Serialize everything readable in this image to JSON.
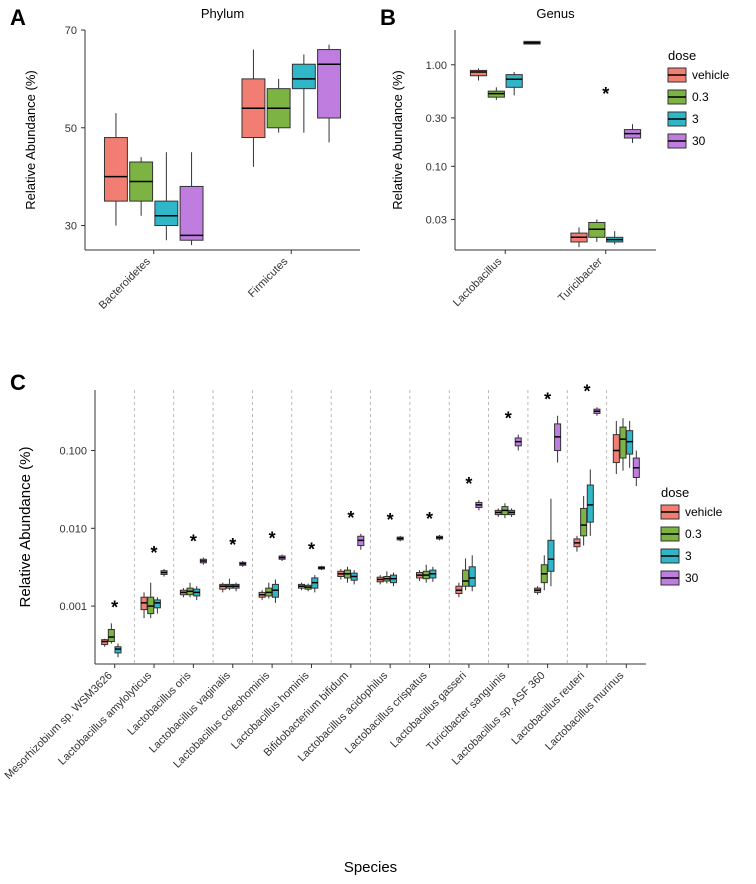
{
  "colors": {
    "vehicle": "#f27e73",
    "d03": "#7cb342",
    "d3": "#2fb7c9",
    "d30": "#c07de0",
    "bg": "#ffffff",
    "border": "#333333"
  },
  "doses": [
    "vehicle",
    "0.3",
    "3",
    "30"
  ],
  "panelA": {
    "title": "Phylum",
    "ylabel": "Relative Abundance (%)",
    "ylim": [
      25,
      70
    ],
    "yticks": [
      30,
      50,
      70
    ],
    "categories": [
      "Bacteroidetes",
      "Firmicutes"
    ],
    "data": {
      "Bacteroidetes": {
        "vehicle": {
          "low": 30,
          "q1": 35,
          "med": 40,
          "q3": 48,
          "high": 53
        },
        "0.3": {
          "low": 32,
          "q1": 35,
          "med": 39,
          "q3": 43,
          "high": 44
        },
        "3": {
          "low": 27,
          "q1": 30,
          "med": 32,
          "q3": 35,
          "high": 45
        },
        "30": {
          "low": 26,
          "q1": 27,
          "med": 28,
          "q3": 38,
          "high": 45
        }
      },
      "Firmicutes": {
        "vehicle": {
          "low": 42,
          "q1": 48,
          "med": 54,
          "q3": 60,
          "high": 66
        },
        "0.3": {
          "low": 49,
          "q1": 50,
          "med": 54,
          "q3": 58,
          "high": 60
        },
        "3": {
          "low": 49,
          "q1": 58,
          "med": 60,
          "q3": 63,
          "high": 65
        },
        "30": {
          "low": 47,
          "q1": 52,
          "med": 63,
          "q3": 66,
          "high": 67
        }
      }
    }
  },
  "panelB": {
    "title": "Genus",
    "ylabel": "Relative Abundance (%)",
    "yticks": [
      0.03,
      0.1,
      0.3,
      1.0
    ],
    "ylim": [
      0.015,
      2.2
    ],
    "categories": [
      "Lactobacillus",
      "Turicibacter"
    ],
    "stars": {
      "Turicibacter": true
    },
    "data": {
      "Lactobacillus": {
        "vehicle": {
          "low": 0.7,
          "q1": 0.78,
          "med": 0.85,
          "q3": 0.88,
          "high": 0.92
        },
        "0.3": {
          "low": 0.45,
          "q1": 0.48,
          "med": 0.52,
          "q3": 0.55,
          "high": 0.6
        },
        "3": {
          "low": 0.5,
          "q1": 0.6,
          "med": 0.72,
          "q3": 0.8,
          "high": 0.85
        },
        "30": {
          "low": 1.6,
          "q1": 1.6,
          "med": 1.65,
          "q3": 1.7,
          "high": 1.7
        }
      },
      "Turicibacter": {
        "vehicle": {
          "low": 0.016,
          "q1": 0.018,
          "med": 0.02,
          "q3": 0.022,
          "high": 0.025
        },
        "0.3": {
          "low": 0.018,
          "q1": 0.02,
          "med": 0.024,
          "q3": 0.028,
          "high": 0.03
        },
        "3": {
          "low": 0.017,
          "q1": 0.018,
          "med": 0.019,
          "q3": 0.02,
          "high": 0.023
        },
        "30": {
          "low": 0.17,
          "q1": 0.19,
          "med": 0.21,
          "q3": 0.23,
          "high": 0.26
        }
      }
    }
  },
  "panelC": {
    "ylabel": "Relative Abundance (%)",
    "xlabel": "Species",
    "yticks": [
      0.001,
      0.01,
      0.1
    ],
    "ylim": [
      0.00018,
      0.6
    ],
    "species": [
      {
        "name": "Mesorhizobium sp. WSM3626",
        "star": true,
        "vehicle": {
          "low": 0.0003,
          "q1": 0.00032,
          "med": 0.00035,
          "q3": 0.00037,
          "high": 0.00038
        },
        "0.3": {
          "low": 0.00033,
          "q1": 0.00035,
          "med": 0.0004,
          "q3": 0.0005,
          "high": 0.0006
        },
        "3": {
          "low": 0.00022,
          "q1": 0.00025,
          "med": 0.00028,
          "q3": 0.0003,
          "high": 0.00033
        }
      },
      {
        "name": "Lactobacillus amylolyticus",
        "star": true,
        "vehicle": {
          "low": 0.0007,
          "q1": 0.0009,
          "med": 0.0011,
          "q3": 0.0013,
          "high": 0.0015
        },
        "0.3": {
          "low": 0.0007,
          "q1": 0.0008,
          "med": 0.001,
          "q3": 0.0013,
          "high": 0.002
        },
        "3": {
          "low": 0.0008,
          "q1": 0.00095,
          "med": 0.0011,
          "q3": 0.0012,
          "high": 0.0013
        },
        "30": {
          "low": 0.0024,
          "q1": 0.00255,
          "med": 0.0027,
          "q3": 0.00285,
          "high": 0.003
        }
      },
      {
        "name": "Lactobacillus oris",
        "star": true,
        "vehicle": {
          "low": 0.0013,
          "q1": 0.0014,
          "med": 0.0015,
          "q3": 0.0016,
          "high": 0.0017
        },
        "0.3": {
          "low": 0.0013,
          "q1": 0.0014,
          "med": 0.00155,
          "q3": 0.0017,
          "high": 0.002
        },
        "3": {
          "low": 0.0012,
          "q1": 0.00135,
          "med": 0.0015,
          "q3": 0.00165,
          "high": 0.0018
        },
        "30": {
          "low": 0.0034,
          "q1": 0.0036,
          "med": 0.0038,
          "q3": 0.004,
          "high": 0.0042
        }
      },
      {
        "name": "Lactobacillus vaginalis",
        "star": true,
        "vehicle": {
          "low": 0.0015,
          "q1": 0.00165,
          "med": 0.0018,
          "q3": 0.0019,
          "high": 0.002
        },
        "0.3": {
          "low": 0.0016,
          "q1": 0.0017,
          "med": 0.0018,
          "q3": 0.0019,
          "high": 0.00225
        },
        "3": {
          "low": 0.00155,
          "q1": 0.0017,
          "med": 0.0018,
          "q3": 0.0019,
          "high": 0.002
        },
        "30": {
          "low": 0.0032,
          "q1": 0.00335,
          "med": 0.0035,
          "q3": 0.00365,
          "high": 0.0038
        }
      },
      {
        "name": "Lactobacillus coleohominis",
        "star": true,
        "vehicle": {
          "low": 0.0012,
          "q1": 0.0013,
          "med": 0.0014,
          "q3": 0.0015,
          "high": 0.0016
        },
        "0.3": {
          "low": 0.00125,
          "q1": 0.00135,
          "med": 0.0015,
          "q3": 0.0017,
          "high": 0.002
        },
        "3": {
          "low": 0.0011,
          "q1": 0.0013,
          "med": 0.0016,
          "q3": 0.0019,
          "high": 0.0022
        },
        "30": {
          "low": 0.0038,
          "q1": 0.004,
          "med": 0.0042,
          "q3": 0.0044,
          "high": 0.0046
        }
      },
      {
        "name": "Lactobacillus hominis",
        "star": true,
        "vehicle": {
          "low": 0.0016,
          "q1": 0.0017,
          "med": 0.0018,
          "q3": 0.0019,
          "high": 0.002
        },
        "0.3": {
          "low": 0.00155,
          "q1": 0.00165,
          "med": 0.00175,
          "q3": 0.00185,
          "high": 0.00195
        },
        "3": {
          "low": 0.0015,
          "q1": 0.0017,
          "med": 0.002,
          "q3": 0.0023,
          "high": 0.0025
        },
        "30": {
          "low": 0.0029,
          "q1": 0.003,
          "med": 0.0031,
          "q3": 0.0032,
          "high": 0.0033
        }
      },
      {
        "name": "Bifidobacterium bifidum",
        "star": true,
        "vehicle": {
          "low": 0.0022,
          "q1": 0.0024,
          "med": 0.0026,
          "q3": 0.0028,
          "high": 0.003
        },
        "0.3": {
          "low": 0.002,
          "q1": 0.0023,
          "med": 0.0026,
          "q3": 0.0029,
          "high": 0.0032
        },
        "3": {
          "low": 0.0019,
          "q1": 0.00215,
          "med": 0.0024,
          "q3": 0.00265,
          "high": 0.0029
        },
        "30": {
          "low": 0.0053,
          "q1": 0.006,
          "med": 0.007,
          "q3": 0.0079,
          "high": 0.0085
        }
      },
      {
        "name": "Lactobacillus acidophilus",
        "star": true,
        "vehicle": {
          "low": 0.0019,
          "q1": 0.00205,
          "med": 0.0022,
          "q3": 0.00235,
          "high": 0.0025
        },
        "0.3": {
          "low": 0.00195,
          "q1": 0.0021,
          "med": 0.00225,
          "q3": 0.0024,
          "high": 0.0028
        },
        "3": {
          "low": 0.0018,
          "q1": 0.002,
          "med": 0.00225,
          "q3": 0.0025,
          "high": 0.0027
        },
        "30": {
          "low": 0.0068,
          "q1": 0.0071,
          "med": 0.0074,
          "q3": 0.0077,
          "high": 0.008
        }
      },
      {
        "name": "Lactobacillus crispatus",
        "star": true,
        "vehicle": {
          "low": 0.0021,
          "q1": 0.0023,
          "med": 0.0025,
          "q3": 0.0027,
          "high": 0.0029
        },
        "0.3": {
          "low": 0.002,
          "q1": 0.00225,
          "med": 0.0025,
          "q3": 0.0028,
          "high": 0.0034
        },
        "3": {
          "low": 0.00205,
          "q1": 0.0023,
          "med": 0.0026,
          "q3": 0.0029,
          "high": 0.0032
        },
        "30": {
          "low": 0.007,
          "q1": 0.0073,
          "med": 0.0076,
          "q3": 0.0079,
          "high": 0.0082
        }
      },
      {
        "name": "Lactobacillus gasseri",
        "star": true,
        "vehicle": {
          "low": 0.0013,
          "q1": 0.00145,
          "med": 0.0016,
          "q3": 0.0018,
          "high": 0.002
        },
        "0.3": {
          "low": 0.0016,
          "q1": 0.0018,
          "med": 0.0021,
          "q3": 0.0029,
          "high": 0.0041
        },
        "3": {
          "low": 0.00155,
          "q1": 0.0018,
          "med": 0.0023,
          "q3": 0.0032,
          "high": 0.0045
        },
        "30": {
          "low": 0.017,
          "q1": 0.0185,
          "med": 0.02,
          "q3": 0.0215,
          "high": 0.023
        }
      },
      {
        "name": "Turicibacter sanguinis",
        "star": true,
        "vehicle": {
          "low": 0.014,
          "q1": 0.015,
          "med": 0.016,
          "q3": 0.017,
          "high": 0.018
        },
        "0.3": {
          "low": 0.0135,
          "q1": 0.015,
          "med": 0.017,
          "q3": 0.019,
          "high": 0.021
        },
        "3": {
          "low": 0.014,
          "q1": 0.015,
          "med": 0.016,
          "q3": 0.017,
          "high": 0.018
        },
        "30": {
          "low": 0.1,
          "q1": 0.115,
          "med": 0.13,
          "q3": 0.145,
          "high": 0.16
        }
      },
      {
        "name": "Lactobacillus sp. ASF 360",
        "star": true,
        "vehicle": {
          "low": 0.0014,
          "q1": 0.0015,
          "med": 0.0016,
          "q3": 0.0017,
          "high": 0.0018
        },
        "0.3": {
          "low": 0.0016,
          "q1": 0.002,
          "med": 0.0026,
          "q3": 0.0034,
          "high": 0.0045
        },
        "3": {
          "low": 0.0018,
          "q1": 0.0028,
          "med": 0.004,
          "q3": 0.007,
          "high": 0.024
        },
        "30": {
          "low": 0.07,
          "q1": 0.1,
          "med": 0.15,
          "q3": 0.22,
          "high": 0.28
        }
      },
      {
        "name": "Lactobacillus reuteri",
        "star": true,
        "vehicle": {
          "low": 0.005,
          "q1": 0.0058,
          "med": 0.0065,
          "q3": 0.0073,
          "high": 0.008
        },
        "0.3": {
          "low": 0.006,
          "q1": 0.008,
          "med": 0.011,
          "q3": 0.018,
          "high": 0.026
        },
        "3": {
          "low": 0.008,
          "q1": 0.012,
          "med": 0.02,
          "q3": 0.036,
          "high": 0.057
        },
        "30": {
          "low": 0.28,
          "q1": 0.3,
          "med": 0.32,
          "q3": 0.34,
          "high": 0.36
        }
      },
      {
        "name": "Lactobacillus murinus",
        "star": false,
        "vehicle": {
          "low": 0.05,
          "q1": 0.07,
          "med": 0.1,
          "q3": 0.16,
          "high": 0.24
        },
        "0.3": {
          "low": 0.055,
          "q1": 0.08,
          "med": 0.14,
          "q3": 0.2,
          "high": 0.26
        },
        "3": {
          "low": 0.06,
          "q1": 0.09,
          "med": 0.13,
          "q3": 0.18,
          "high": 0.24
        },
        "30": {
          "low": 0.035,
          "q1": 0.045,
          "med": 0.06,
          "q3": 0.08,
          "high": 0.1
        }
      }
    ]
  },
  "legend": {
    "title": "dose",
    "items": [
      "vehicle",
      "0.3",
      "3",
      "30"
    ]
  }
}
